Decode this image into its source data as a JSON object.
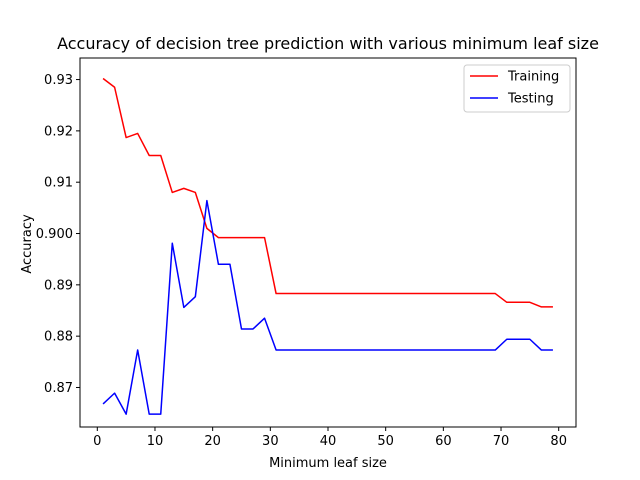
{
  "chart_data": {
    "type": "line",
    "title": "Accuracy of decision tree prediction with various minimum leaf size",
    "xlabel": "Minimum leaf size",
    "ylabel": "Accuracy",
    "xlim": [
      -3,
      83
    ],
    "ylim": [
      0.8623,
      0.9342
    ],
    "xticks": [
      0,
      10,
      20,
      30,
      40,
      50,
      60,
      70,
      80
    ],
    "yticks": [
      0.87,
      0.88,
      0.89,
      0.9,
      0.91,
      0.92,
      0.93
    ],
    "xtick_labels": [
      "0",
      "10",
      "20",
      "30",
      "40",
      "50",
      "60",
      "70",
      "80"
    ],
    "ytick_labels": [
      "0.87",
      "0.88",
      "0.89",
      "0.900",
      "0.91",
      "0.92",
      "0.93"
    ],
    "grid": false,
    "legend_position": "top-right",
    "x": [
      1,
      3,
      5,
      7,
      9,
      11,
      13,
      15,
      17,
      19,
      21,
      23,
      25,
      27,
      29,
      31,
      33,
      35,
      37,
      39,
      41,
      43,
      45,
      47,
      49,
      51,
      53,
      55,
      57,
      59,
      61,
      63,
      65,
      67,
      69,
      71,
      73,
      75,
      77,
      79
    ],
    "series": [
      {
        "name": "Training",
        "color": "#ff0000",
        "values": [
          0.9302,
          0.9285,
          0.9187,
          0.9195,
          0.9152,
          0.9152,
          0.908,
          0.9088,
          0.908,
          0.901,
          0.8992,
          0.8992,
          0.8992,
          0.8992,
          0.8992,
          0.8883,
          0.8883,
          0.8883,
          0.8883,
          0.8883,
          0.8883,
          0.8883,
          0.8883,
          0.8883,
          0.8883,
          0.8883,
          0.8883,
          0.8883,
          0.8883,
          0.8883,
          0.8883,
          0.8883,
          0.8883,
          0.8883,
          0.8883,
          0.8866,
          0.8866,
          0.8866,
          0.8857,
          0.8857
        ]
      },
      {
        "name": "Testing",
        "color": "#0000ff",
        "values": [
          0.8668,
          0.8689,
          0.8648,
          0.8773,
          0.8648,
          0.8648,
          0.8981,
          0.8856,
          0.8877,
          0.9064,
          0.894,
          0.894,
          0.8814,
          0.8814,
          0.8835,
          0.8773,
          0.8773,
          0.8773,
          0.8773,
          0.8773,
          0.8773,
          0.8773,
          0.8773,
          0.8773,
          0.8773,
          0.8773,
          0.8773,
          0.8773,
          0.8773,
          0.8773,
          0.8773,
          0.8773,
          0.8773,
          0.8773,
          0.8773,
          0.8794,
          0.8794,
          0.8794,
          0.8773,
          0.8773
        ]
      }
    ]
  }
}
